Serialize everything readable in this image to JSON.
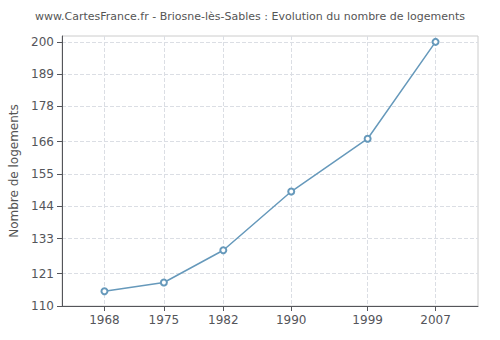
{
  "chart_data": {
    "type": "line",
    "title": "www.CartesFrance.fr - Briosne-lès-Sables : Evolution du nombre de logements",
    "ylabel": "Nombre de logements",
    "x": [
      1968,
      1975,
      1982,
      1990,
      1999,
      2007
    ],
    "values": [
      115,
      118,
      129,
      149,
      167,
      200
    ],
    "color": "#6699bb",
    "marker": "circle",
    "xlim": [
      1963,
      2012
    ],
    "ylim": [
      110,
      202
    ],
    "xticks": [
      1968,
      1975,
      1982,
      1990,
      1999,
      2007
    ],
    "yticks": [
      110,
      121,
      133,
      144,
      155,
      166,
      178,
      189,
      200
    ],
    "grid": true
  }
}
